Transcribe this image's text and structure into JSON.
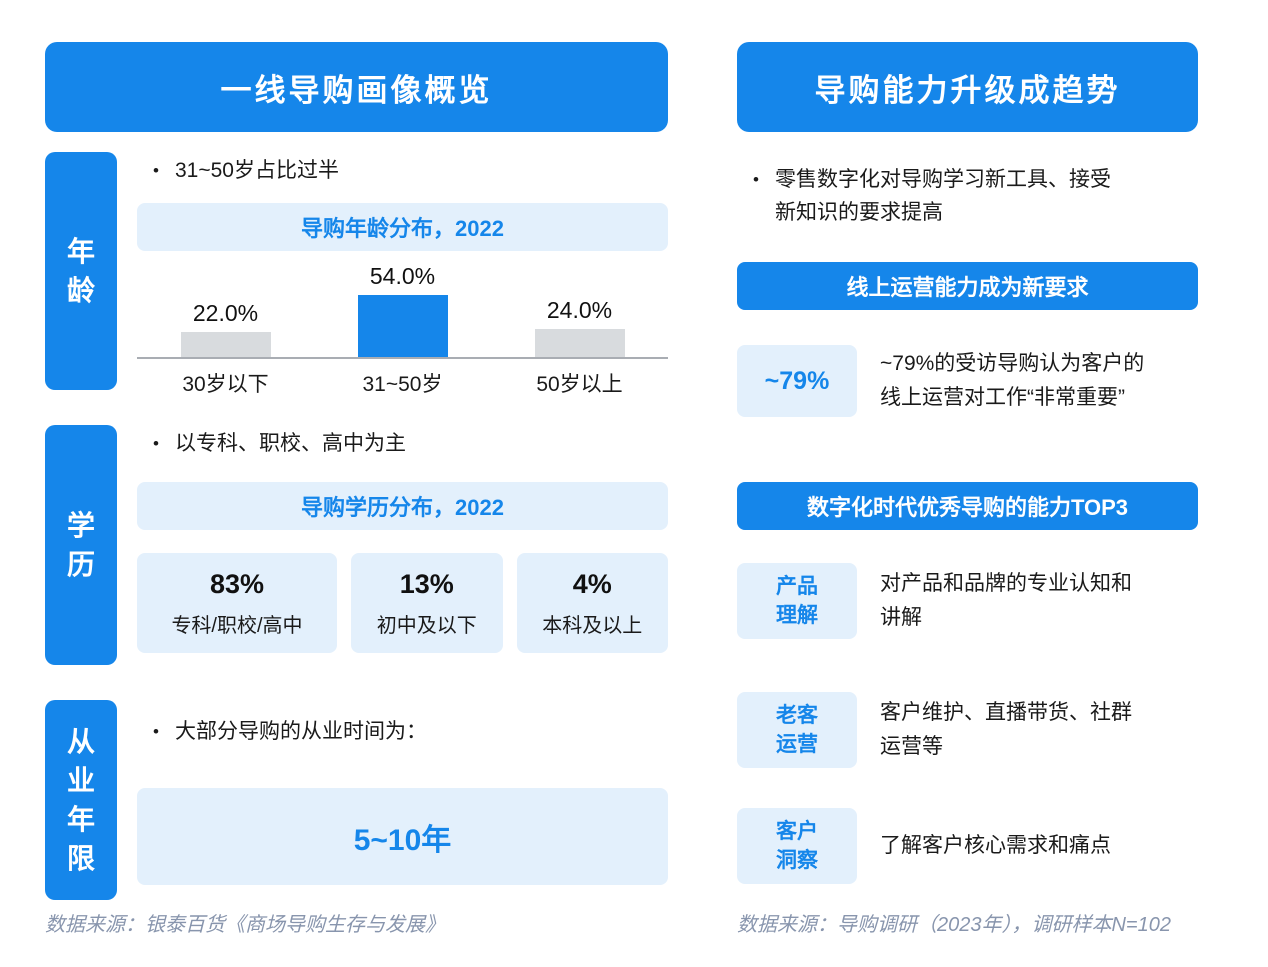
{
  "glyphs": {
    "bullet": "•"
  },
  "colors": {
    "accent_blue": "#1586ea",
    "light_blue_bg": "#e3f0fc",
    "bar_gray": "#d8dbde",
    "footer_text": "#8895ad"
  },
  "left_panel": {
    "header": "一线导购画像概览",
    "age_section": {
      "side_label": "年龄",
      "bullet": "31~50岁占比过半"
    },
    "education_section": {
      "side_label": "学历",
      "bullet": "以专科、职校、高中为主"
    },
    "tenure_section": {
      "side_label": "从业年限",
      "bullet": "大部分导购的从业时间为：",
      "value": "5~10年"
    },
    "footer": "数据来源：银泰百货《商场导购生存与发展》"
  },
  "right_panel": {
    "header": "导购能力升级成趋势",
    "bullet": "零售数字化对导购学习新工具、接受\n新知识的要求提高",
    "online_banner": "线上运营能力成为新要求",
    "stat": {
      "value": "~79%",
      "text": "~79%的受访导购认为客户的\n线上运营对工作“非常重要”"
    },
    "top3_banner": "数字化时代优秀导购的能力TOP3",
    "abilities": [
      {
        "label": "产品\n理解",
        "text": "对产品和品牌的专业认知和\n讲解"
      },
      {
        "label": "老客\n运营",
        "text": "客户维护、直播带货、社群\n运营等"
      },
      {
        "label": "客户\n洞察",
        "text": "了解客户核心需求和痛点"
      }
    ],
    "footer": "数据来源：导购调研（2023年），调研样本N=102"
  },
  "chart_data": [
    {
      "type": "bar",
      "title": "导购年龄分布，2022",
      "categories": [
        "30岁以下",
        "31~50岁",
        "50岁以上"
      ],
      "values": [
        22.0,
        54.0,
        24.0
      ],
      "value_labels": [
        "22.0%",
        "54.0%",
        "24.0%"
      ],
      "unit": "%",
      "ylim": [
        0,
        60
      ],
      "bar_colors": [
        "#d8dbde",
        "#1586ea",
        "#d8dbde"
      ],
      "highlight_index": 1,
      "grid": false,
      "legend": false
    },
    {
      "type": "bar",
      "title": "导购学历分布，2022",
      "categories": [
        "专科/职校/高中",
        "初中及以下",
        "本科及以上"
      ],
      "values": [
        83,
        13,
        4
      ],
      "value_labels": [
        "83%",
        "13%",
        "4%"
      ],
      "unit": "%"
    }
  ]
}
